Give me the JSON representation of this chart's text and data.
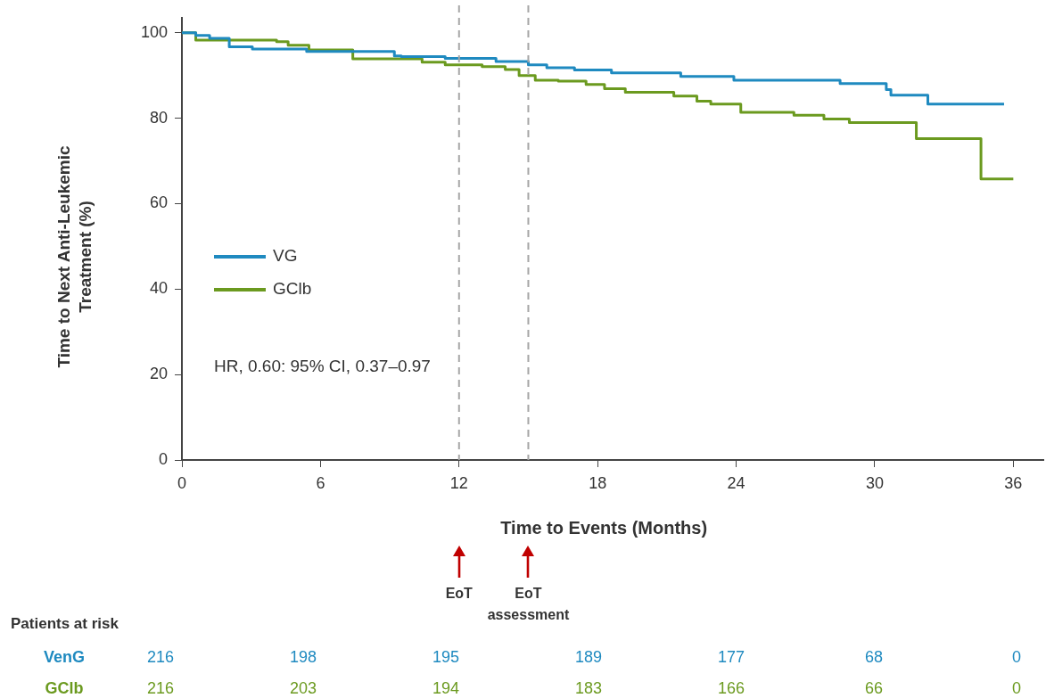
{
  "chart_data": {
    "type": "step",
    "xlabel": "Time to Events (Months)",
    "ylabel": "Time to Next Anti-Leukemic\nTreatment (%)",
    "xlim": [
      0,
      37.3
    ],
    "ylim": [
      0,
      103.5
    ],
    "xticks": [
      0,
      6,
      12,
      18,
      24,
      30,
      36
    ],
    "yticks": [
      0,
      20,
      40,
      60,
      80,
      100
    ],
    "grid": false,
    "legend": "left",
    "marker": "none",
    "line_style": "solid",
    "series": [
      {
        "name": "VG",
        "color": "#1f8ac0",
        "x": [
          0,
          0.6,
          1.2,
          2.05,
          3.05,
          5.4,
          9.2,
          9.5,
          11.4,
          13.6,
          15.0,
          15.8,
          17.0,
          18.6,
          21.6,
          23.9,
          28.5,
          30.5,
          30.7,
          32.3,
          35.6
        ],
        "values": [
          100,
          99.4,
          98.7,
          96.7,
          96.2,
          95.6,
          94.6,
          94.4,
          94.0,
          93.3,
          92.5,
          91.8,
          91.3,
          90.6,
          89.8,
          88.9,
          88.1,
          86.7,
          85.4,
          83.3,
          83.3
        ]
      },
      {
        "name": "GClb",
        "color": "#6b9a1f",
        "x": [
          0,
          0.6,
          4.1,
          4.6,
          5.5,
          7.4,
          10.4,
          11.4,
          13.0,
          14.0,
          14.6,
          15.3,
          16.3,
          17.5,
          18.3,
          19.2,
          21.3,
          22.3,
          22.9,
          24.2,
          26.5,
          27.8,
          28.9,
          31.8,
          34.6,
          36.0
        ],
        "values": [
          100,
          98.3,
          97.9,
          97.1,
          96.0,
          93.9,
          93.1,
          92.5,
          92.1,
          91.4,
          90.0,
          88.9,
          88.7,
          87.9,
          86.9,
          86.1,
          85.2,
          84.0,
          83.3,
          81.4,
          80.7,
          79.8,
          79.0,
          75.2,
          65.8,
          65.8
        ]
      }
    ],
    "ref_lines": [
      {
        "axis": "x",
        "value": 12,
        "color": "#a6a6a6",
        "line_style": "dashed"
      },
      {
        "axis": "x",
        "value": 15,
        "color": "#a6a6a6",
        "line_style": "dashed"
      }
    ],
    "annotations": [
      "EoT",
      "EoT assessment",
      "HR, 0.60: 95% CI, 0.37–0.97",
      "Patients at risk",
      "VenG",
      "216",
      "198",
      "195",
      "189",
      "177",
      "68",
      "0",
      "GClb",
      "216",
      "203",
      "194",
      "183",
      "166",
      "66",
      "0"
    ]
  }
}
